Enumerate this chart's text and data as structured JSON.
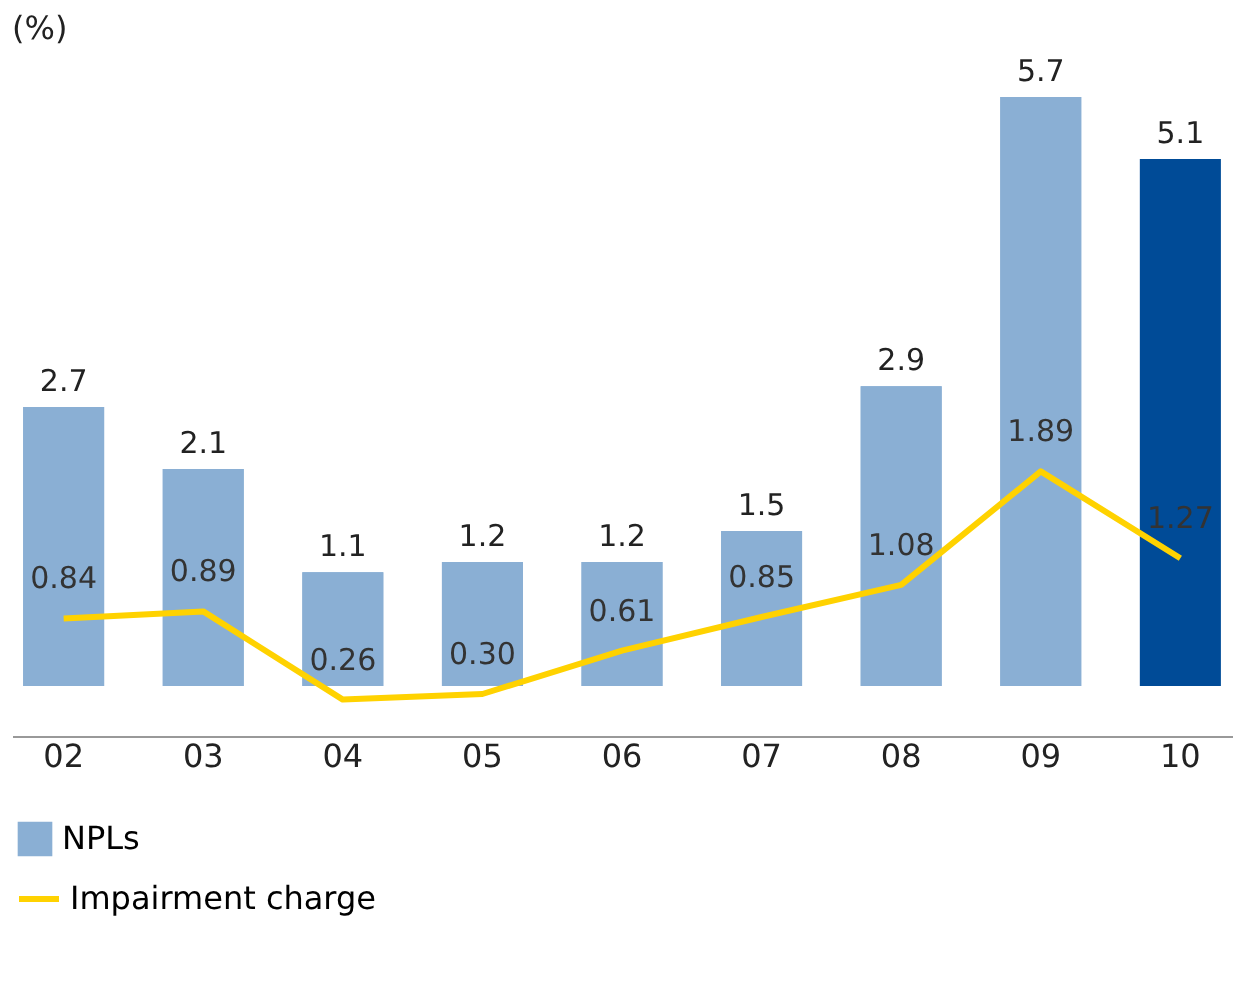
{
  "chart_data": {
    "type": "bar",
    "categories": [
      "02",
      "03",
      "04",
      "05",
      "06",
      "07",
      "08",
      "09",
      "10"
    ],
    "annotations": [
      "(%)"
    ],
    "data_labels": true,
    "legend": "bottom left",
    "grid": false,
    "tick_labels": "x",
    "series": [
      {
        "name": "NPLs",
        "colors": [
          "#8aafd4",
          "#8aafd4",
          "#8aafd4",
          "#8aafd4",
          "#8aafd4",
          "#8aafd4",
          "#8aafd4",
          "#8aafd4",
          "#004b97"
        ],
        "color": "#8aafd4",
        "values": [
          2.7,
          2.1,
          1.1,
          1.2,
          1.2,
          1.5,
          2.9,
          5.7,
          5.1
        ]
      },
      {
        "name": "Impairment charge",
        "type": "line",
        "axis": "y2",
        "color": "#ffd200",
        "values": [
          0.84,
          0.89,
          0.26,
          0.3,
          0.61,
          0.85,
          1.08,
          1.89,
          1.27
        ],
        "value_labels": [
          "0.84",
          "0.89",
          "0.26",
          "0.30",
          "0.61",
          "0.85",
          "1.08",
          "1.89",
          "1.27"
        ]
      }
    ]
  }
}
